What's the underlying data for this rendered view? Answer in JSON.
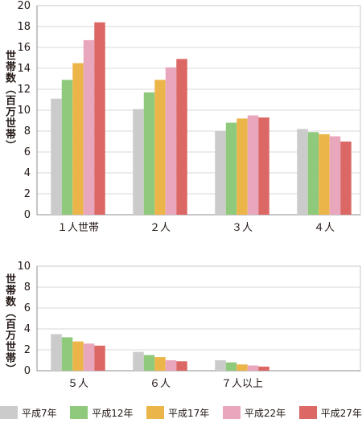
{
  "chart_data": [
    {
      "type": "bar",
      "ylabel": "世帯数（百万世帯）",
      "ylim": [
        0,
        20
      ],
      "yticks": [
        0,
        2,
        4,
        6,
        8,
        10,
        12,
        14,
        16,
        18,
        20
      ],
      "categories": [
        "１人世帯",
        "２人",
        "３人",
        "４人"
      ],
      "series": [
        {
          "name": "平成7年",
          "values": [
            11.1,
            10.1,
            8.0,
            8.2
          ]
        },
        {
          "name": "平成12年",
          "values": [
            12.9,
            11.7,
            8.8,
            7.9
          ]
        },
        {
          "name": "平成17年",
          "values": [
            14.5,
            12.9,
            9.2,
            7.7
          ]
        },
        {
          "name": "平成22年",
          "values": [
            16.7,
            14.1,
            9.5,
            7.5
          ]
        },
        {
          "name": "平成27年",
          "values": [
            18.4,
            14.9,
            9.3,
            7.0
          ]
        }
      ]
    },
    {
      "type": "bar",
      "ylabel": "世帯数（百万世帯）",
      "ylim": [
        0,
        10
      ],
      "yticks": [
        0,
        2,
        4,
        6,
        8,
        10
      ],
      "categories": [
        "５人",
        "６人",
        "７人以上"
      ],
      "series": [
        {
          "name": "平成7年",
          "values": [
            3.5,
            1.8,
            1.0
          ]
        },
        {
          "name": "平成12年",
          "values": [
            3.2,
            1.5,
            0.8
          ]
        },
        {
          "name": "平成17年",
          "values": [
            2.8,
            1.3,
            0.6
          ]
        },
        {
          "name": "平成22年",
          "values": [
            2.6,
            1.0,
            0.5
          ]
        },
        {
          "name": "平成27年",
          "values": [
            2.4,
            0.9,
            0.4
          ]
        }
      ]
    }
  ],
  "legend": {
    "position": "bottom",
    "items": [
      {
        "label": "平成7年",
        "color": "#cbcbcb"
      },
      {
        "label": "平成12年",
        "color": "#8fc97b"
      },
      {
        "label": "平成17年",
        "color": "#ecb54a"
      },
      {
        "label": "平成22年",
        "color": "#e9a7bd"
      },
      {
        "label": "平成27年",
        "color": "#dc6866"
      }
    ]
  }
}
